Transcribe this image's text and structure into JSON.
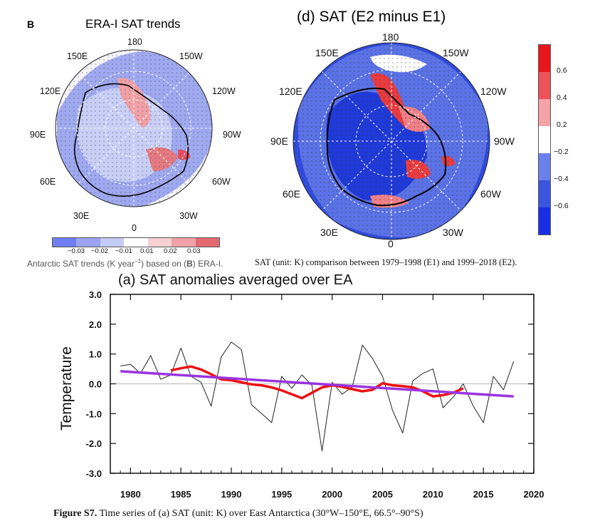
{
  "left_map": {
    "panel_letter": "B",
    "title": "ERA-I SAT trends",
    "lon_labels": {
      "top": "180",
      "tr": "150W",
      "r1": "120W",
      "r2": "90W",
      "r3": "60W",
      "br": "30W",
      "bottom": "0",
      "bl": "30E",
      "l3": "60E",
      "l2": "90E",
      "l1": "120E",
      "tl": "150E"
    },
    "colorbar_ticks": [
      "−0.03",
      "−0.02",
      "−0.01",
      "0.01",
      "0.02",
      "0.03"
    ],
    "caption_prefix": "Antarctic SAT trends (K year",
    "caption_exp": "−1",
    "caption_mid": ") based on (",
    "caption_bold": "B",
    "caption_end": ") ERA-I."
  },
  "right_map": {
    "title": "(d) SAT (E2 minus E1)",
    "lon_labels": {
      "top": "180",
      "tr": "150W",
      "r1": "120W",
      "r2": "90W",
      "r3": "60W",
      "br": "30W",
      "bottom": "0",
      "bl": "30E",
      "l3": "60E",
      "l2": "90E",
      "l1": "120E",
      "tl": "150E"
    },
    "colorbar_ticks": [
      "0.6",
      "0.4",
      "0.2",
      "−0.2",
      "−0.4",
      "−0.6"
    ],
    "caption": "SAT (unit: K) comparison between 1979–1998 (E1) and 1999–2018 (E2)."
  },
  "chart_data": {
    "type": "line",
    "title": "(a) SAT anomalies averaged over EA",
    "ylabel": "Temperature",
    "xlabel": "",
    "xlim": [
      1978,
      2020
    ],
    "ylim": [
      -3.0,
      3.0
    ],
    "xticks": [
      "1980",
      "1985",
      "1990",
      "1995",
      "2000",
      "2005",
      "2010",
      "2015",
      "2020"
    ],
    "yticks": [
      "3.0",
      "2.0",
      "1.0",
      "0.0",
      "-1.0",
      "-2.0",
      "-3.0"
    ],
    "zero_line": true,
    "series": [
      {
        "color": "#222222",
        "x": [
          1979,
          1980,
          1981,
          1982,
          1983,
          1984,
          1985,
          1986,
          1987,
          1988,
          1989,
          1990,
          1991,
          1992,
          1993,
          1994,
          1995,
          1996,
          1997,
          1998,
          1999,
          2000,
          2001,
          2002,
          2003,
          2004,
          2005,
          2006,
          2007,
          2008,
          2009,
          2010,
          2011,
          2012,
          2013,
          2014,
          2015,
          2016,
          2017,
          2018
        ],
        "values": [
          0.6,
          0.65,
          0.35,
          0.95,
          0.15,
          0.3,
          1.2,
          0.25,
          0.05,
          -0.75,
          0.9,
          1.4,
          1.15,
          -0.7,
          -1.0,
          -1.3,
          0.25,
          -0.15,
          0.3,
          -0.05,
          -2.25,
          0.05,
          -0.35,
          -0.1,
          1.3,
          0.85,
          0.25,
          -0.9,
          -1.65,
          0.1,
          0.35,
          0.5,
          -0.8,
          -0.45,
          0.0,
          -0.75,
          -1.3,
          0.25,
          -0.2,
          0.75
        ]
      },
      {
        "color": "#ee1111",
        "x": [
          1984,
          1985,
          1986,
          1987,
          1988,
          1989,
          1990,
          1991,
          1992,
          1993,
          1994,
          1995,
          1996,
          1997,
          1998,
          1999,
          2000,
          2001,
          2002,
          2003,
          2004,
          2005,
          2006,
          2007,
          2008,
          2009,
          2010,
          2011,
          2012,
          2013
        ],
        "values": [
          0.45,
          0.52,
          0.58,
          0.48,
          0.32,
          0.15,
          0.12,
          0.05,
          -0.02,
          -0.05,
          -0.12,
          -0.22,
          -0.35,
          -0.48,
          -0.3,
          -0.12,
          -0.05,
          -0.1,
          -0.18,
          -0.25,
          -0.2,
          0.02,
          -0.05,
          -0.08,
          -0.12,
          -0.25,
          -0.42,
          -0.38,
          -0.3,
          -0.15
        ]
      },
      {
        "color": "#9a34e0",
        "x": [
          1979,
          2018
        ],
        "values": [
          0.42,
          -0.42
        ]
      }
    ]
  },
  "figure_caption": {
    "bold": "Figure S7.",
    "rest": " Time series of (a) SAT (unit: K) over East Antarctica (30°W–150°E, 66.5°–90°S)"
  }
}
